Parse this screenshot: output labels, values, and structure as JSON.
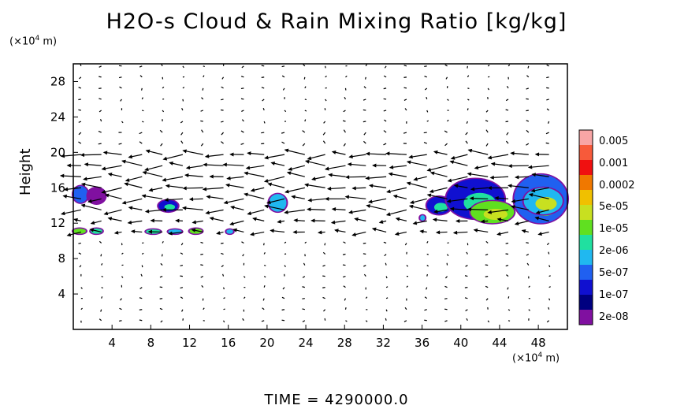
{
  "title": "H2O-s Cloud & Rain Mixing Ratio [kg/kg]",
  "y_unit_prefix": "(×10",
  "y_unit_exp": "4",
  "y_unit_suffix": " m)",
  "x_unit_prefix": "(×10",
  "x_unit_exp": "4",
  "x_unit_suffix": " m)",
  "time_label": "TIME  =  4290000.0",
  "chart_data": {
    "type": "heatmap",
    "title": "H2O-s Cloud & Rain Mixing Ratio [kg/kg]",
    "xlabel": "",
    "ylabel": "Height",
    "xlim": [
      0,
      51
    ],
    "ylim": [
      0,
      30
    ],
    "x_ticks": [
      4,
      8,
      12,
      16,
      20,
      24,
      28,
      32,
      36,
      40,
      44,
      48
    ],
    "y_ticks": [
      4,
      8,
      12,
      16,
      20,
      24,
      28
    ],
    "grid": false,
    "colorbar": {
      "labels": [
        "0.005",
        "0.001",
        "0.0002",
        "5e-05",
        "1e-05",
        "2e-06",
        "5e-07",
        "1e-07",
        "2e-08"
      ],
      "colors": [
        "#f8a5a5",
        "#f75a3a",
        "#f01010",
        "#f07800",
        "#f0c000",
        "#c8e020",
        "#60e020",
        "#20e0a0",
        "#20b8f0",
        "#2060f0",
        "#1010d0",
        "#000080",
        "#8010a0"
      ]
    },
    "regions": [
      {
        "x": [
          0,
          1.5
        ],
        "y": [
          14.3,
          16.2
        ],
        "level": 9
      },
      {
        "x": [
          1.5,
          3.3
        ],
        "y": [
          14.2,
          16.0
        ],
        "level": 12
      },
      {
        "x": [
          0,
          1.3
        ],
        "y": [
          10.8,
          11.4
        ],
        "level": 6
      },
      {
        "x": [
          1.8,
          3.0
        ],
        "y": [
          10.8,
          11.4
        ],
        "level": 7
      },
      {
        "x": [
          7.5,
          9.0
        ],
        "y": [
          10.8,
          11.3
        ],
        "level": 7
      },
      {
        "x": [
          9.8,
          11.2
        ],
        "y": [
          10.8,
          11.3
        ],
        "level": 8
      },
      {
        "x": [
          12.0,
          13.3
        ],
        "y": [
          10.8,
          11.4
        ],
        "level": 6
      },
      {
        "x": [
          15.8,
          16.5
        ],
        "y": [
          10.8,
          11.3
        ],
        "level": 8
      },
      {
        "x": [
          8.8,
          10.8
        ],
        "y": [
          13.3,
          14.6
        ],
        "level": 10
      },
      {
        "x": [
          20.2,
          22.0
        ],
        "y": [
          13.3,
          15.3
        ],
        "level": 8
      },
      {
        "x": [
          36.5,
          39.0
        ],
        "y": [
          13.0,
          15.0
        ],
        "level": 10
      },
      {
        "x": [
          35.8,
          36.3
        ],
        "y": [
          12.3,
          12.9
        ],
        "level": 8
      },
      {
        "x": [
          38.5,
          44.5
        ],
        "y": [
          12.5,
          17.0
        ],
        "level": 10
      },
      {
        "x": [
          41.0,
          45.5
        ],
        "y": [
          12.0,
          14.5
        ],
        "level": 6
      },
      {
        "x": [
          45.5,
          51.0
        ],
        "y": [
          12.0,
          17.5
        ],
        "level": 9
      },
      {
        "x": [
          46.5,
          50.5
        ],
        "y": [
          13.0,
          16.0
        ],
        "level": 8
      }
    ]
  }
}
